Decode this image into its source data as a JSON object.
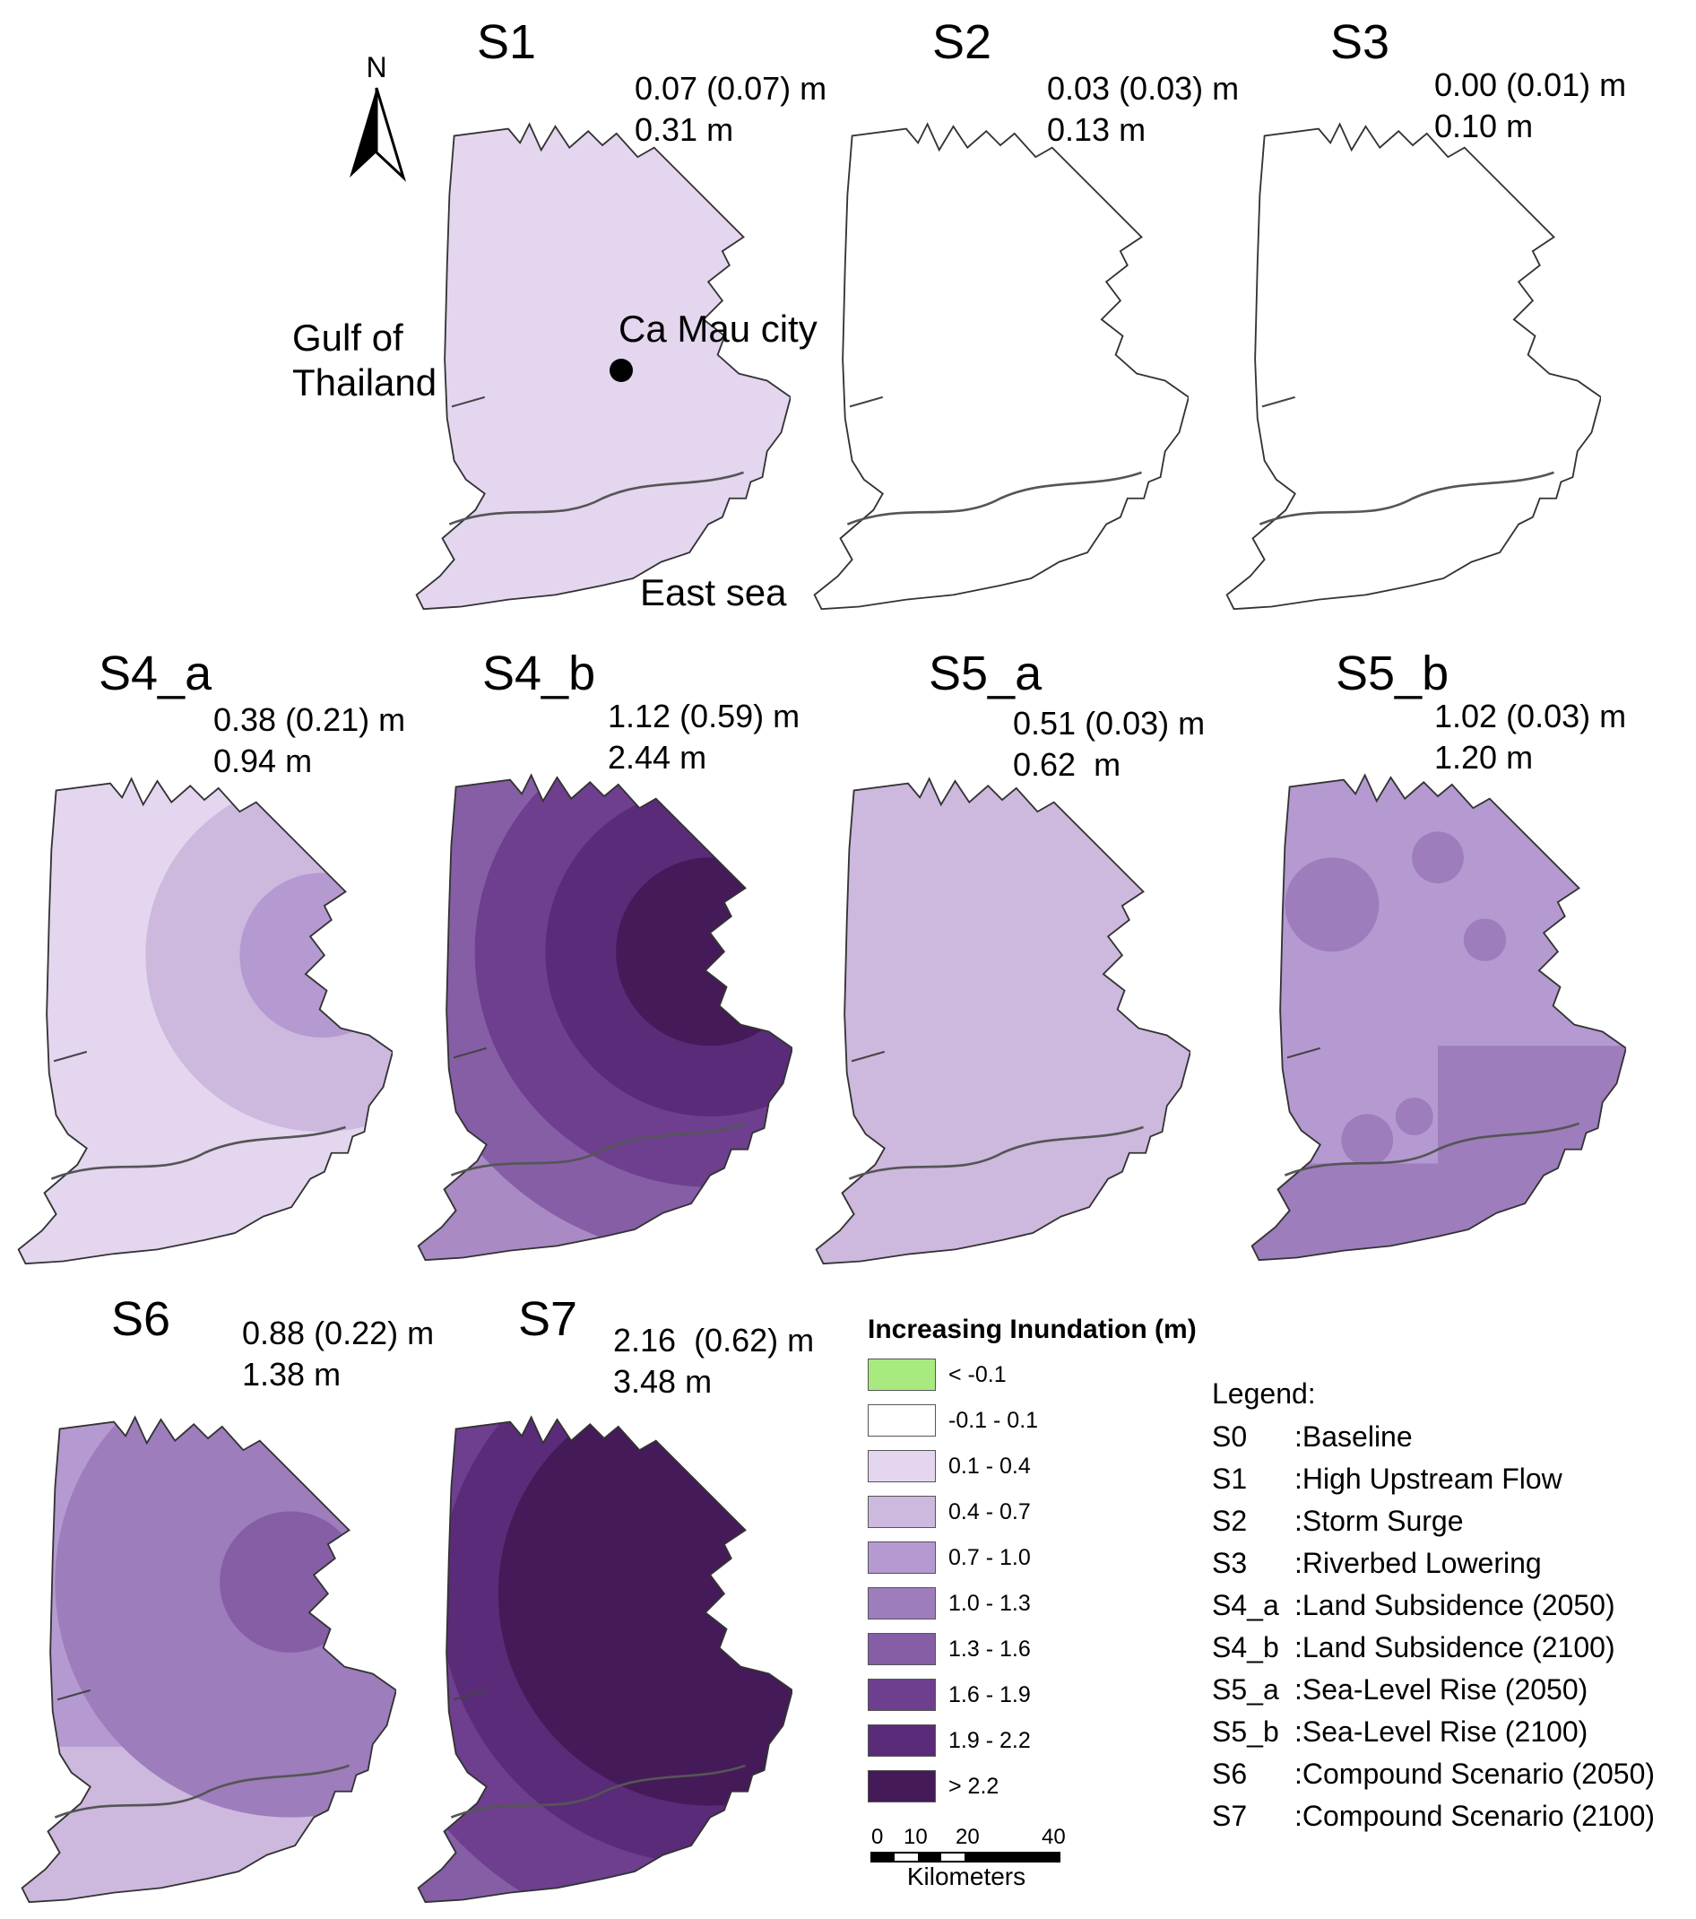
{
  "panels": [
    {
      "id": "S1",
      "title": "S1",
      "line1": "0.07 (0.07) m",
      "line2": "0.31 m",
      "fill": "#e4d6ee",
      "pattern": "uniform"
    },
    {
      "id": "S2",
      "title": "S2",
      "line1": "0.03 (0.03) m",
      "line2": "0.13 m",
      "fill": "#ffffff",
      "pattern": "blank"
    },
    {
      "id": "S3",
      "title": "S3",
      "line1": "0.00 (0.01) m",
      "line2": "0.10 m",
      "fill": "#ffffff",
      "pattern": "blank"
    },
    {
      "id": "S4_a",
      "title": "S4_a",
      "line1": "0.38 (0.21) m",
      "line2": "0.94 m",
      "fill": "#e4d6ee",
      "pattern": "rings-light"
    },
    {
      "id": "S4_b",
      "title": "S4_b",
      "line1": "1.12 (0.59) m",
      "line2": "2.44 m",
      "fill": "#a98ac4",
      "pattern": "rings-dark"
    },
    {
      "id": "S5_a",
      "title": "S5_a",
      "line1": "0.51 (0.03) m",
      "line2": "0.62  m",
      "fill": "#cdb8de",
      "pattern": "uniform"
    },
    {
      "id": "S5_b",
      "title": "S5_b",
      "line1": "1.02 (0.03) m",
      "line2": "1.20 m",
      "fill": "#9d7dbb",
      "pattern": "circles"
    },
    {
      "id": "S6",
      "title": "S6",
      "line1": "0.88 (0.22) m",
      "line2": "1.38 m",
      "fill": "#b49ad0",
      "pattern": "rings-mid"
    },
    {
      "id": "S7",
      "title": "S7",
      "line1": "2.16  (0.62) m",
      "line2": "3.48 m",
      "fill": "#4a1a5a",
      "pattern": "rings-deep"
    }
  ],
  "map_labels": {
    "gulf_line1": "Gulf of",
    "gulf_line2": "Thailand",
    "city": "Ca Mau city",
    "east_sea": "East sea",
    "north": "N"
  },
  "legend": {
    "title": "Increasing Inundation (m)",
    "classes": [
      {
        "label": "< -0.1",
        "color": "#a8ea80"
      },
      {
        "label": "-0.1 - 0.1",
        "color": "#ffffff"
      },
      {
        "label": "0.1 - 0.4",
        "color": "#e4d6ee"
      },
      {
        "label": "0.4 - 0.7",
        "color": "#cdb8de"
      },
      {
        "label": "0.7 - 1.0",
        "color": "#b49ad0"
      },
      {
        "label": "1.0 - 1.3",
        "color": "#9d7dbb"
      },
      {
        "label": "1.3 - 1.6",
        "color": "#855ea6"
      },
      {
        "label": "1.6 - 1.9",
        "color": "#6d3f8e"
      },
      {
        "label": "1.9 - 2.2",
        "color": "#5a2b78"
      },
      {
        "label": "> 2.2",
        "color": "#451a58"
      }
    ]
  },
  "scale": {
    "ticks": [
      "0",
      "10",
      "20",
      "40"
    ],
    "unit": "Kilometers"
  },
  "scenario_key": {
    "title": "Legend:",
    "items": [
      {
        "code": "S0",
        "desc": ":Baseline"
      },
      {
        "code": "S1",
        "desc": ":High Upstream Flow"
      },
      {
        "code": "S2",
        "desc": ":Storm Surge"
      },
      {
        "code": "S3",
        "desc": ":Riverbed Lowering"
      },
      {
        "code": "S4_a",
        "desc": ":Land Subsidence (2050)"
      },
      {
        "code": "S4_b",
        "desc": ":Land Subsidence (2100)"
      },
      {
        "code": "S5_a",
        "desc": ":Sea-Level Rise (2050)"
      },
      {
        "code": "S5_b",
        "desc": ":Sea-Level Rise (2100)"
      },
      {
        "code": "S6",
        "desc": ":Compound Scenario (2050)"
      },
      {
        "code": "S7",
        "desc": ":Compound Scenario (2100)"
      }
    ]
  }
}
